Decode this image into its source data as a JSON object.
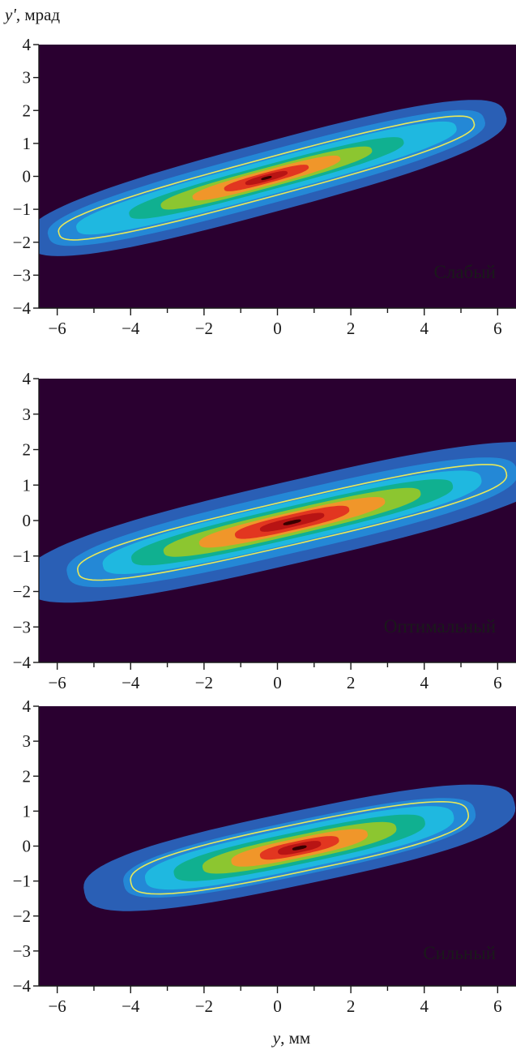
{
  "chart_data": {
    "type": "heatmap",
    "ylabel": {
      "symbol": "y'",
      "unit": ", мрад"
    },
    "xlabel": {
      "symbol": "y",
      "unit": ", мм"
    },
    "xlim": [
      -6.5,
      6.5
    ],
    "ylim": [
      -4,
      4
    ],
    "x_major_ticks": [
      -6,
      -4,
      -2,
      0,
      2,
      4,
      6
    ],
    "x_minor_ticks": [
      -5,
      -3,
      -1,
      1,
      3,
      5
    ],
    "y_major_ticks": [
      -4,
      -3,
      -2,
      -1,
      0,
      1,
      2,
      3,
      4
    ],
    "x_tick_labels": [
      "−6",
      "−4",
      "−2",
      "0",
      "2",
      "4",
      "6"
    ],
    "y_tick_labels": [
      "−4",
      "−3",
      "−2",
      "−1",
      "0",
      "1",
      "2",
      "3",
      "4"
    ],
    "background_color": "#2a0030",
    "contour_line_color": "#e8e85a",
    "color_levels": [
      "#2a5fb5",
      "#2488d6",
      "#1fb8e0",
      "#10b090",
      "#8cc630",
      "#f0962a",
      "#e23620",
      "#b81414",
      "#3a0000"
    ],
    "panels": [
      {
        "label": "Слабый",
        "center": [
          -0.3,
          -0.05
        ],
        "slope": 0.3,
        "levels": [
          {
            "half_length": 6.8,
            "half_width": 1.05
          },
          {
            "half_length": 6.2,
            "half_width": 0.78
          },
          {
            "half_length": 5.4,
            "half_width": 0.52
          },
          {
            "half_length": 3.9,
            "half_width": 0.38
          },
          {
            "half_length": 3.0,
            "half_width": 0.3
          },
          {
            "half_length": 2.1,
            "half_width": 0.23
          },
          {
            "half_length": 1.2,
            "half_width": 0.16
          },
          {
            "half_length": 0.6,
            "half_width": 0.1
          },
          {
            "half_length": 0.15,
            "half_width": 0.04
          }
        ],
        "contour": {
          "half_length": 5.9,
          "half_width": 0.58
        }
      },
      {
        "label": "Оптимальный",
        "center": [
          0.4,
          -0.05
        ],
        "slope": 0.24,
        "levels": [
          {
            "half_length": 7.5,
            "half_width": 1.15
          },
          {
            "half_length": 6.3,
            "half_width": 0.85
          },
          {
            "half_length": 5.3,
            "half_width": 0.58
          },
          {
            "half_length": 4.5,
            "half_width": 0.45
          },
          {
            "half_length": 3.6,
            "half_width": 0.36
          },
          {
            "half_length": 2.6,
            "half_width": 0.28
          },
          {
            "half_length": 1.6,
            "half_width": 0.22
          },
          {
            "half_length": 0.9,
            "half_width": 0.13
          },
          {
            "half_length": 0.25,
            "half_width": 0.05
          }
        ],
        "contour": {
          "half_length": 6.0,
          "half_width": 0.62
        }
      },
      {
        "label": "Сильный",
        "center": [
          0.6,
          -0.05
        ],
        "slope": 0.22,
        "levels": [
          {
            "half_length": 6.0,
            "half_width": 1.05
          },
          {
            "half_length": 4.9,
            "half_width": 0.78
          },
          {
            "half_length": 4.3,
            "half_width": 0.6
          },
          {
            "half_length": 3.5,
            "half_width": 0.46
          },
          {
            "half_length": 2.7,
            "half_width": 0.36
          },
          {
            "half_length": 1.9,
            "half_width": 0.28
          },
          {
            "half_length": 1.1,
            "half_width": 0.2
          },
          {
            "half_length": 0.6,
            "half_width": 0.13
          },
          {
            "half_length": 0.2,
            "half_width": 0.05
          }
        ],
        "contour": {
          "half_length": 4.7,
          "half_width": 0.68
        }
      }
    ]
  }
}
